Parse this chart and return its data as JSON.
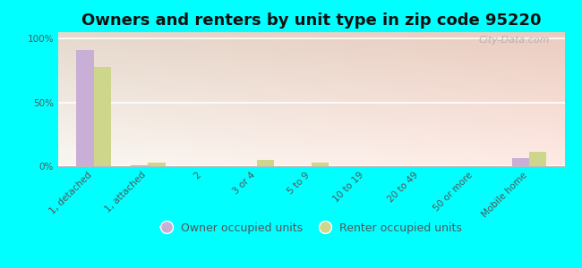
{
  "title": "Owners and renters by unit type in zip code 95220",
  "categories": [
    "1, detached",
    "1, attached",
    "2",
    "3 or 4",
    "5 to 9",
    "10 to 19",
    "20 to 49",
    "50 or more",
    "Mobile home"
  ],
  "owner_values": [
    91,
    1,
    0,
    0,
    0,
    0,
    0,
    0,
    6
  ],
  "renter_values": [
    78,
    3,
    0,
    5,
    3,
    0,
    0,
    0,
    11
  ],
  "owner_color": "#c9aed6",
  "renter_color": "#cdd68a",
  "background_color": "#00ffff",
  "watermark": "City-Data.com",
  "ylabel_ticks": [
    "0%",
    "50%",
    "100%"
  ],
  "ytick_vals": [
    0,
    50,
    100
  ],
  "ylim": [
    0,
    105
  ],
  "bar_width": 0.32,
  "legend_owner": "Owner occupied units",
  "legend_renter": "Renter occupied units",
  "title_fontsize": 13,
  "tick_fontsize": 7.5,
  "legend_fontsize": 9
}
